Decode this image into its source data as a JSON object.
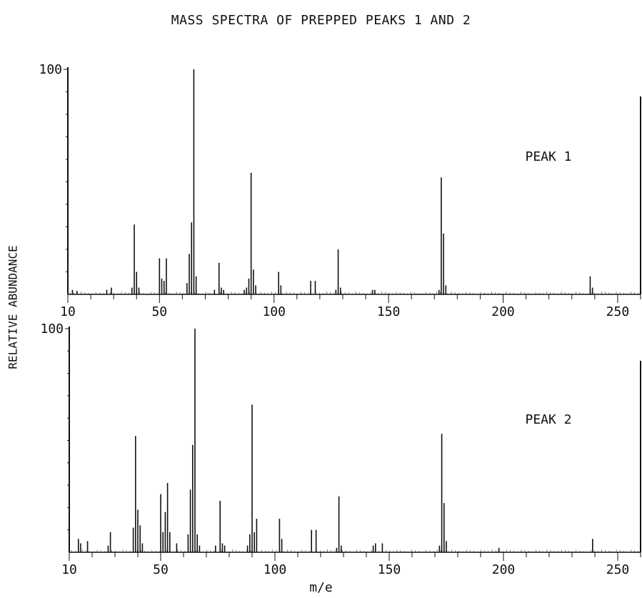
{
  "title": "MASS SPECTRA OF PREPPED PEAKS 1 AND 2",
  "ylabel": "RELATIVE ABUNDANCE",
  "xlabel": "m/e",
  "chart_data": [
    {
      "type": "bar",
      "series_label": "PEAK 1",
      "xlim": [
        10,
        260
      ],
      "ylim": [
        0,
        100
      ],
      "y_tick_labels": [
        "100"
      ],
      "x_tick_labels": [
        "10",
        "50",
        "100",
        "150",
        "200",
        "250"
      ],
      "peaks": [
        {
          "x": 12,
          "y": 2
        },
        {
          "x": 14,
          "y": 1.5
        },
        {
          "x": 27,
          "y": 2
        },
        {
          "x": 29,
          "y": 3
        },
        {
          "x": 38,
          "y": 3
        },
        {
          "x": 39,
          "y": 31
        },
        {
          "x": 40,
          "y": 10
        },
        {
          "x": 41,
          "y": 3
        },
        {
          "x": 50,
          "y": 16
        },
        {
          "x": 51,
          "y": 7
        },
        {
          "x": 52,
          "y": 6
        },
        {
          "x": 53,
          "y": 16
        },
        {
          "x": 62,
          "y": 5
        },
        {
          "x": 63,
          "y": 18
        },
        {
          "x": 64,
          "y": 32
        },
        {
          "x": 65,
          "y": 100
        },
        {
          "x": 66,
          "y": 8
        },
        {
          "x": 74,
          "y": 2
        },
        {
          "x": 76,
          "y": 14
        },
        {
          "x": 77,
          "y": 3
        },
        {
          "x": 78,
          "y": 2
        },
        {
          "x": 87,
          "y": 2
        },
        {
          "x": 88,
          "y": 3
        },
        {
          "x": 89,
          "y": 7
        },
        {
          "x": 90,
          "y": 54
        },
        {
          "x": 91,
          "y": 11
        },
        {
          "x": 92,
          "y": 4
        },
        {
          "x": 102,
          "y": 10
        },
        {
          "x": 103,
          "y": 4
        },
        {
          "x": 116,
          "y": 6
        },
        {
          "x": 118,
          "y": 6
        },
        {
          "x": 127,
          "y": 2
        },
        {
          "x": 128,
          "y": 20
        },
        {
          "x": 129,
          "y": 3
        },
        {
          "x": 143,
          "y": 2
        },
        {
          "x": 144,
          "y": 2
        },
        {
          "x": 172,
          "y": 2
        },
        {
          "x": 173,
          "y": 52
        },
        {
          "x": 174,
          "y": 27
        },
        {
          "x": 175,
          "y": 4
        },
        {
          "x": 238,
          "y": 8
        },
        {
          "x": 239,
          "y": 3
        }
      ]
    },
    {
      "type": "bar",
      "series_label": "PEAK 2",
      "xlim": [
        10,
        260
      ],
      "ylim": [
        0,
        100
      ],
      "y_tick_labels": [
        "100"
      ],
      "x_tick_labels": [
        "10",
        "50",
        "100",
        "150",
        "200",
        "250"
      ],
      "peaks": [
        {
          "x": 14,
          "y": 6
        },
        {
          "x": 15,
          "y": 4
        },
        {
          "x": 18,
          "y": 5
        },
        {
          "x": 27,
          "y": 3
        },
        {
          "x": 28,
          "y": 9
        },
        {
          "x": 38,
          "y": 11
        },
        {
          "x": 39,
          "y": 52
        },
        {
          "x": 40,
          "y": 19
        },
        {
          "x": 41,
          "y": 12
        },
        {
          "x": 42,
          "y": 4
        },
        {
          "x": 50,
          "y": 26
        },
        {
          "x": 51,
          "y": 9
        },
        {
          "x": 52,
          "y": 18
        },
        {
          "x": 53,
          "y": 31
        },
        {
          "x": 54,
          "y": 9
        },
        {
          "x": 57,
          "y": 4
        },
        {
          "x": 62,
          "y": 8
        },
        {
          "x": 63,
          "y": 28
        },
        {
          "x": 64,
          "y": 48
        },
        {
          "x": 65,
          "y": 100
        },
        {
          "x": 66,
          "y": 8
        },
        {
          "x": 67,
          "y": 3
        },
        {
          "x": 74,
          "y": 3
        },
        {
          "x": 76,
          "y": 23
        },
        {
          "x": 77,
          "y": 4
        },
        {
          "x": 78,
          "y": 3
        },
        {
          "x": 88,
          "y": 3
        },
        {
          "x": 89,
          "y": 8
        },
        {
          "x": 90,
          "y": 66
        },
        {
          "x": 91,
          "y": 9
        },
        {
          "x": 92,
          "y": 15
        },
        {
          "x": 102,
          "y": 15
        },
        {
          "x": 103,
          "y": 6
        },
        {
          "x": 116,
          "y": 10
        },
        {
          "x": 118,
          "y": 10
        },
        {
          "x": 127,
          "y": 2
        },
        {
          "x": 128,
          "y": 25
        },
        {
          "x": 129,
          "y": 3
        },
        {
          "x": 143,
          "y": 3
        },
        {
          "x": 144,
          "y": 4
        },
        {
          "x": 147,
          "y": 4
        },
        {
          "x": 172,
          "y": 3
        },
        {
          "x": 173,
          "y": 53
        },
        {
          "x": 174,
          "y": 22
        },
        {
          "x": 175,
          "y": 5
        },
        {
          "x": 198,
          "y": 2
        },
        {
          "x": 239,
          "y": 6
        }
      ]
    }
  ]
}
